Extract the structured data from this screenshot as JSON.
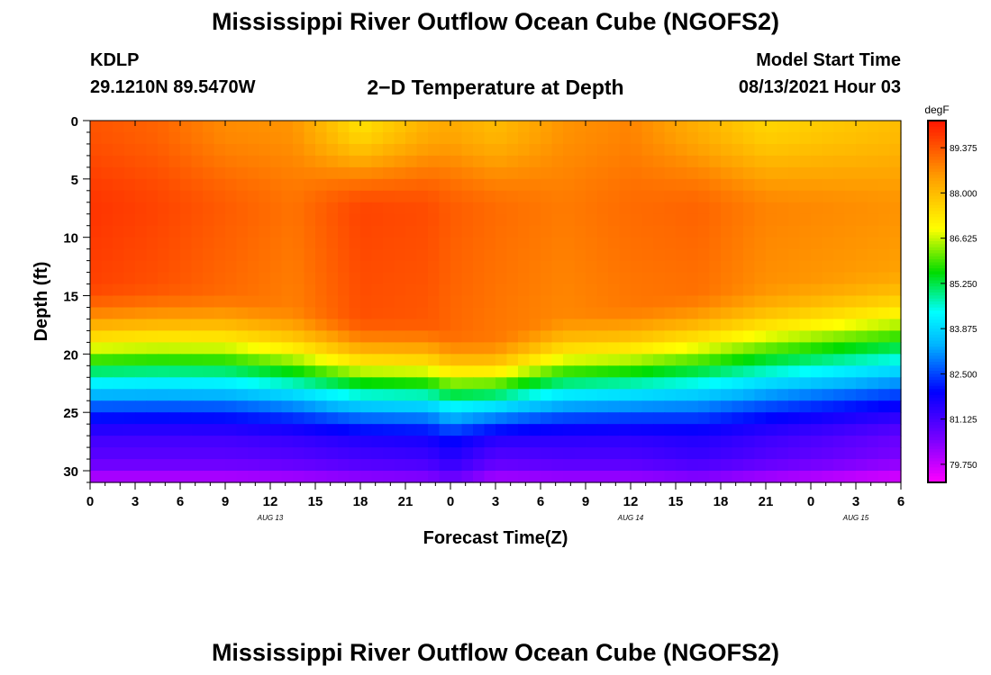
{
  "header": {
    "title": "Mississippi River Outflow Ocean Cube (NGOFS2)",
    "station_id": "KDLP",
    "coordinates": "29.1210N  89.5470W",
    "subtitle": "2−D Temperature at Depth",
    "model_start_label": "Model Start Time",
    "model_start_value": "08/13/2021 Hour 03"
  },
  "footer": {
    "title": "Mississippi River Outflow Ocean Cube (NGOFS2)"
  },
  "chart_data": {
    "type": "heatmap",
    "title": "2−D Temperature at Depth",
    "xlabel": "Forecast Time(Z)",
    "ylabel": "Depth (ft)",
    "x_tick_labels": [
      "0",
      "3",
      "6",
      "9",
      "12",
      "15",
      "18",
      "21",
      "0",
      "3",
      "6",
      "9",
      "12",
      "15",
      "18",
      "21",
      "0",
      "3",
      "6"
    ],
    "date_labels": [
      {
        "label": "AUG  13",
        "hour_index": 12
      },
      {
        "label": "AUG  14",
        "hour_index": 36
      },
      {
        "label": "AUG  15",
        "hour_index": 51
      }
    ],
    "x_range_hours": [
      0,
      54
    ],
    "y_ticks": [
      0,
      5,
      10,
      15,
      20,
      25,
      30
    ],
    "ylim": [
      0,
      31
    ],
    "colorbar": {
      "unit": "degF",
      "tick_labels": [
        "89.375",
        "88.000",
        "86.625",
        "85.250",
        "83.875",
        "82.500",
        "81.125",
        "79.750"
      ],
      "range": [
        79.2,
        90.2
      ]
    },
    "surface_temp": [
      89.4,
      89.2,
      88.7,
      88.6,
      87.4,
      88.2,
      88.3,
      88.0,
      88.6,
      88.8,
      88.2,
      87.6,
      88.0
    ],
    "mid_temp": [
      89.8,
      89.6,
      89.3,
      89.0,
      89.6,
      89.5,
      89.3,
      89.1,
      88.9,
      89.1,
      89.2,
      88.8,
      88.6
    ],
    "mix_depth_ft": [
      17.5,
      17.5,
      18.0,
      19.5,
      20.5,
      20.8,
      21.8,
      22.2,
      20.2,
      19.5,
      18.2,
      17.5,
      16.0
    ],
    "bottom_temp": [
      80.9,
      80.9,
      80.9,
      81.0,
      81.2,
      81.3,
      81.6,
      81.0,
      81.1,
      81.1,
      81.3,
      81.0,
      80.5
    ],
    "profile_hours": [
      0,
      4.5,
      9,
      13.5,
      18,
      22.5,
      24,
      27,
      31.5,
      36,
      40.5,
      45,
      54
    ]
  }
}
